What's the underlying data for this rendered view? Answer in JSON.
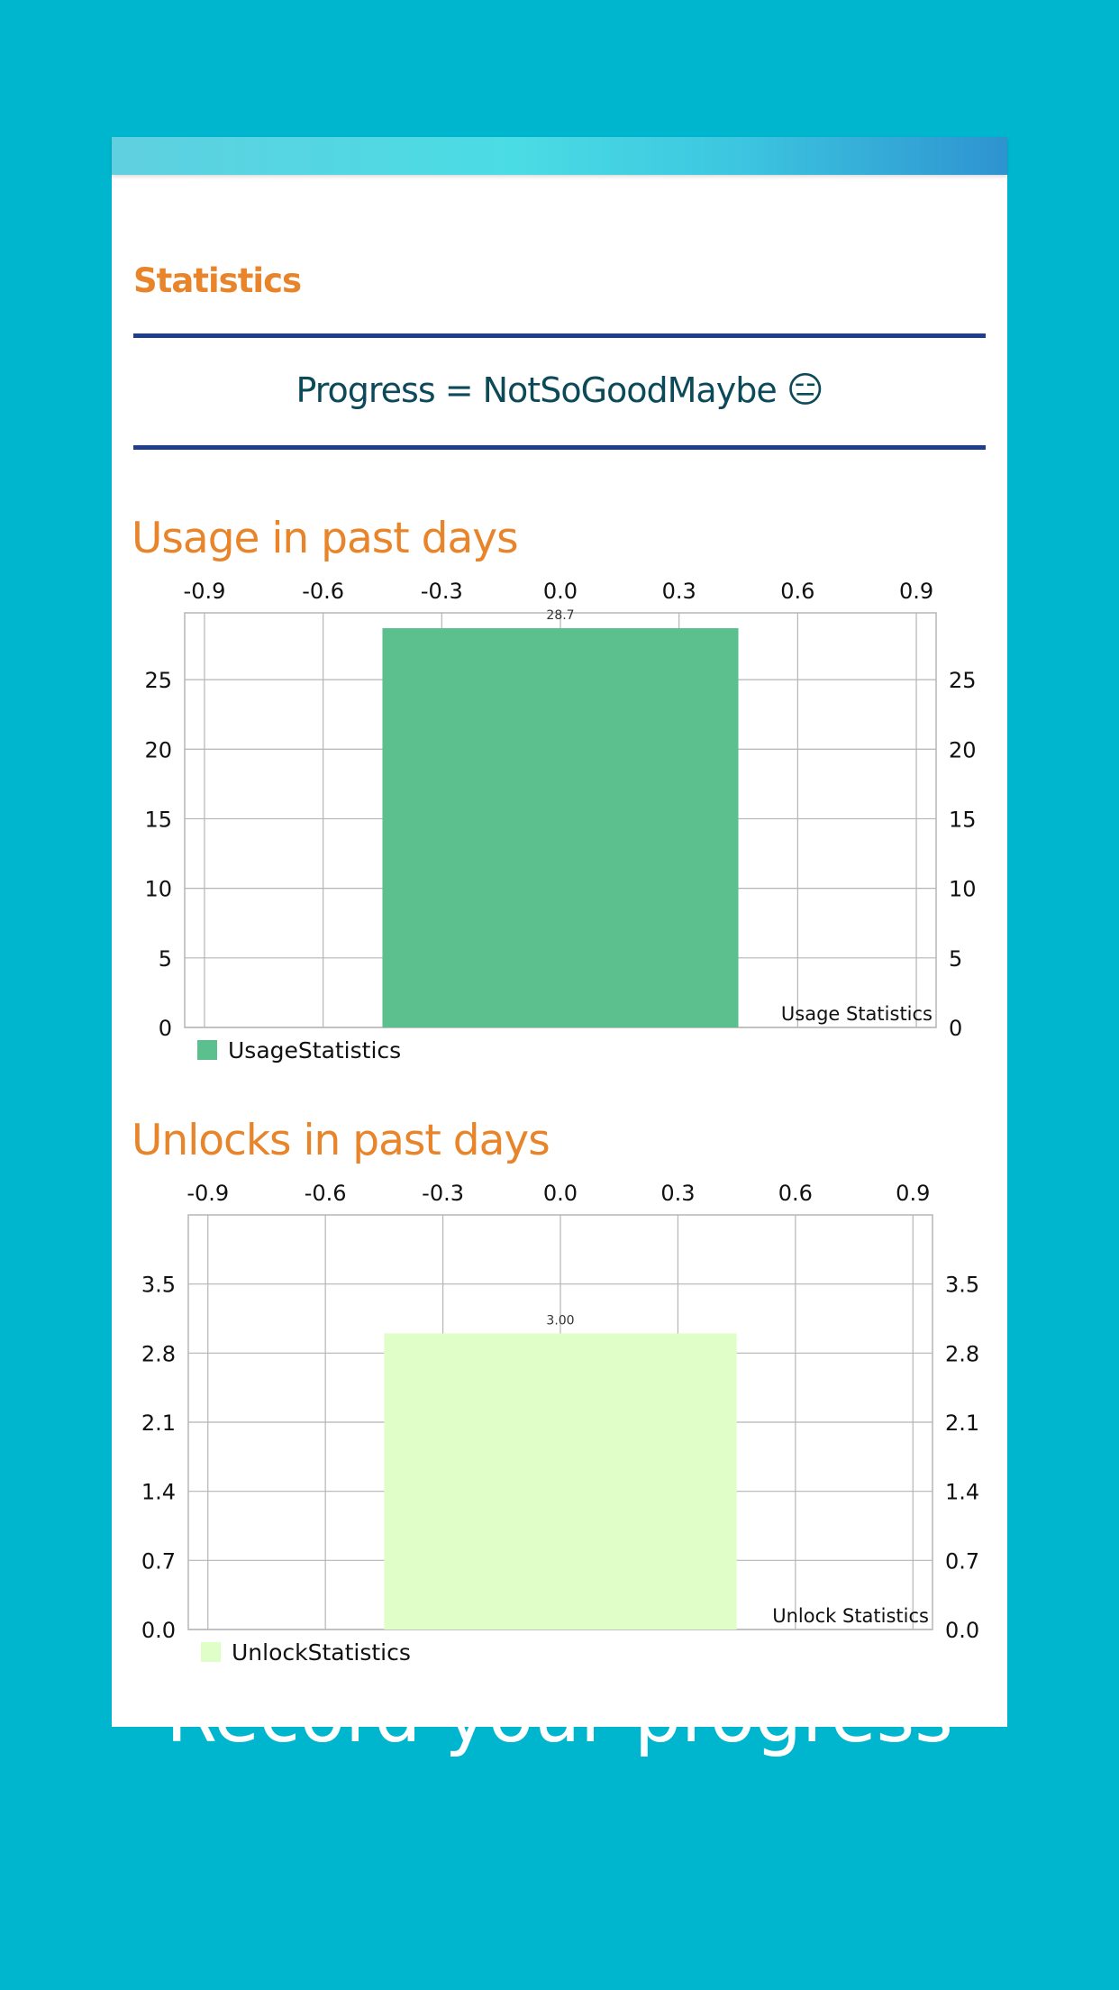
{
  "screen": {
    "section_title": "Statistics",
    "progress_text": "Progress = NotSoGoodMaybe",
    "progress_emoji": "😑",
    "caption": "Record your progress"
  },
  "colors": {
    "background": "#00B6CE",
    "accent_orange": "#E8852B",
    "rule_blue": "#1F3F8C",
    "usage_bar": "#5CBF8E",
    "unlock_bar": "#E0FFC8"
  },
  "chart_data": [
    {
      "type": "bar",
      "heading": "Usage in past days",
      "x": [
        0.0
      ],
      "values": [
        28.7
      ],
      "value_label": "28.7",
      "bar_width": 0.9,
      "xlim": [
        -0.95,
        0.95
      ],
      "x_ticks": [
        "-0.9",
        "-0.6",
        "-0.3",
        "0.0",
        "0.3",
        "0.6",
        "0.9"
      ],
      "ylim": [
        0,
        29.8
      ],
      "y_ticks": [
        "0",
        "5",
        "10",
        "15",
        "20",
        "25"
      ],
      "description": "Usage Statistics",
      "legend": "UsageStatistics",
      "color": "#5CBF8E",
      "grid": true
    },
    {
      "type": "bar",
      "heading": "Unlocks in past days",
      "x": [
        0.0
      ],
      "values": [
        3.0
      ],
      "value_label": "3.00",
      "bar_width": 0.9,
      "xlim": [
        -0.95,
        0.95
      ],
      "x_ticks": [
        "-0.9",
        "-0.6",
        "-0.3",
        "0.0",
        "0.3",
        "0.6",
        "0.9"
      ],
      "ylim": [
        0,
        4.2
      ],
      "y_ticks": [
        "0.0",
        "0.7",
        "1.4",
        "2.1",
        "2.8",
        "3.5"
      ],
      "description": "Unlock Statistics",
      "legend": "UnlockStatistics",
      "color": "#E0FFC8",
      "grid": true
    }
  ]
}
